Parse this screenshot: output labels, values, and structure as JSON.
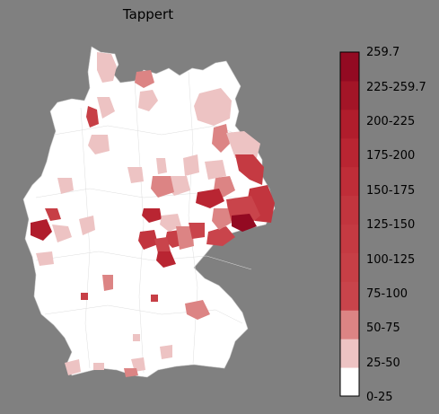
{
  "title": "Tappert",
  "colors": {
    "background": "#808080",
    "land": "#ffffff",
    "border": "#d0d0d0",
    "bins": [
      "#ffffff",
      "#edc3c3",
      "#dc8484",
      "#c9444b",
      "#c73f46",
      "#c53a42",
      "#c2353e",
      "#bf2d38",
      "#b92532",
      "#b01d2c",
      "#a31527",
      "#930a22"
    ]
  },
  "legend": {
    "tick_labels": [
      "259.7",
      "225-259.7",
      "200-225",
      "175-200",
      "150-175",
      "125-150",
      "100-125",
      "75-100",
      "50-75",
      "25-50",
      "0-25"
    ]
  }
}
